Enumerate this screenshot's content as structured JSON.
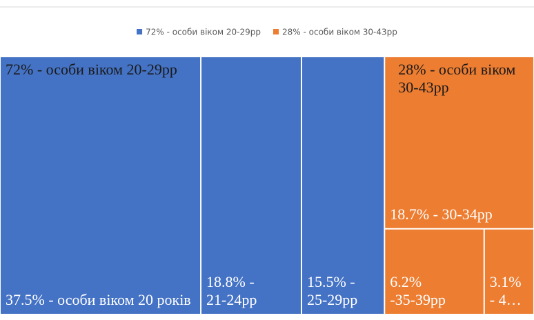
{
  "chart_data": {
    "type": "treemap",
    "groups": [
      {
        "name": "72% - особи віком 20-29рр",
        "value": 72,
        "color": "#4472c4",
        "children": [
          {
            "name": "37.5% - особи віком 20 років",
            "value": 37.5
          },
          {
            "name": "18.8% - 21-24рр",
            "value": 18.8
          },
          {
            "name": "15.5% - 25-29рр",
            "value": 15.5
          }
        ]
      },
      {
        "name": "28% - особи віком 30-43рр",
        "value": 28,
        "color": "#ed7d31",
        "children": [
          {
            "name": "18.7% - 30-34рр",
            "value": 18.7
          },
          {
            "name": "6.2% -35-39рр",
            "value": 6.2
          },
          {
            "name": "3.1% - 4…",
            "value": 3.1
          }
        ]
      }
    ]
  }
}
